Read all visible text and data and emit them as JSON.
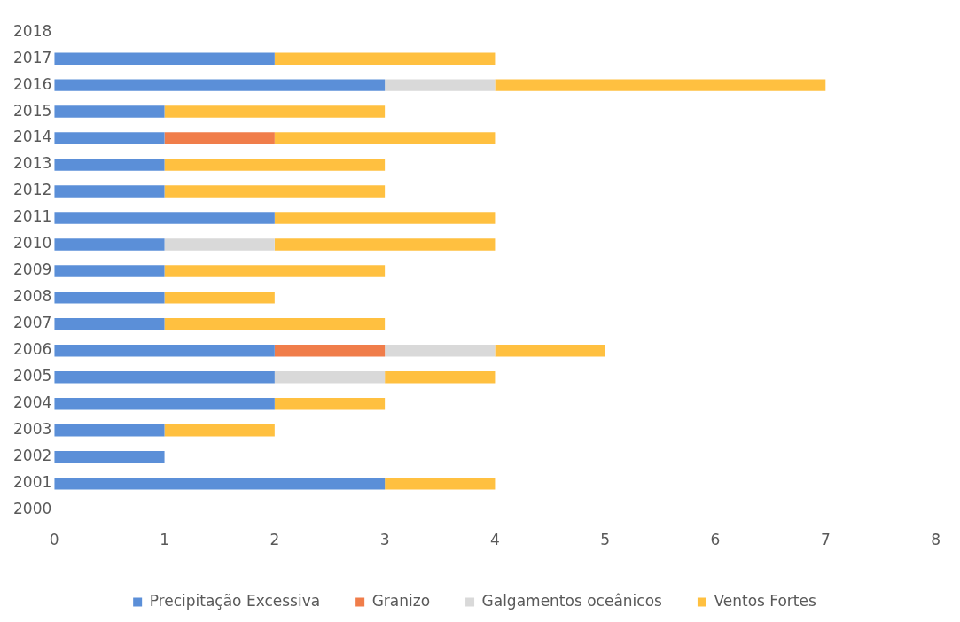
{
  "chart_data": {
    "type": "bar",
    "orientation": "horizontal",
    "stacked": true,
    "categories": [
      "2018",
      "2017",
      "2016",
      "2015",
      "2014",
      "2013",
      "2012",
      "2011",
      "2010",
      "2009",
      "2008",
      "2007",
      "2006",
      "2005",
      "2004",
      "2003",
      "2002",
      "2001",
      "2000"
    ],
    "series": [
      {
        "name": "Precipitação Excessiva",
        "color": "#5b8fd8",
        "values": [
          0,
          2,
          3,
          1,
          1,
          1,
          1,
          2,
          1,
          1,
          1,
          1,
          2,
          2,
          2,
          1,
          1,
          3,
          0
        ]
      },
      {
        "name": "Granizo",
        "color": "#f07d4a",
        "values": [
          0,
          0,
          0,
          0,
          1,
          0,
          0,
          0,
          0,
          0,
          0,
          0,
          1,
          0,
          0,
          0,
          0,
          0,
          0
        ]
      },
      {
        "name": "Galgamentos oceânicos",
        "color": "#d9d9d9",
        "values": [
          0,
          0,
          1,
          0,
          0,
          0,
          0,
          0,
          1,
          0,
          0,
          0,
          1,
          1,
          0,
          0,
          0,
          0,
          0
        ]
      },
      {
        "name": "Ventos Fortes",
        "color": "#ffc040",
        "values": [
          0,
          2,
          3,
          2,
          2,
          2,
          2,
          2,
          2,
          2,
          1,
          2,
          1,
          1,
          1,
          1,
          0,
          1,
          0
        ]
      }
    ],
    "xlim": [
      0,
      8
    ],
    "xticks": [
      0,
      1,
      2,
      3,
      4,
      5,
      6,
      7,
      8
    ],
    "grid": false,
    "legend": "bottom"
  }
}
